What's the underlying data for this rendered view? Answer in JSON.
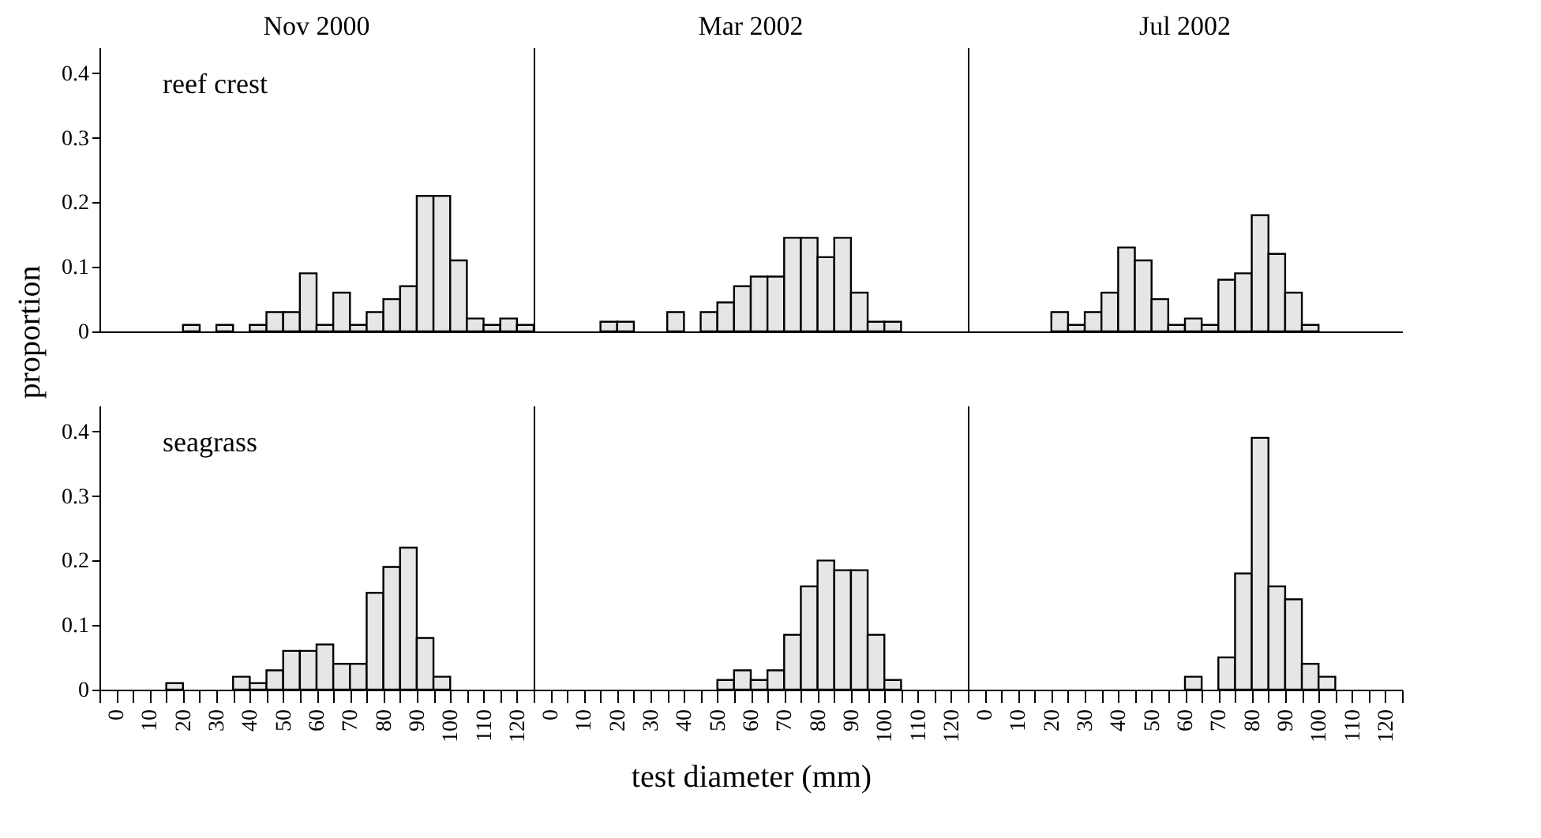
{
  "chart_data": [
    {
      "type": "histogram",
      "title": "Nov 2000",
      "ylabel": "proportion",
      "annotations": [
        "reef crest"
      ],
      "color": "#e6e6e6",
      "bins": [
        -5,
        0,
        5,
        10,
        15,
        20,
        25,
        30,
        35,
        40,
        45,
        50,
        55,
        60,
        65,
        70,
        75,
        80,
        85,
        90,
        95,
        100,
        105,
        110,
        115,
        120,
        125
      ],
      "values": [
        0,
        0,
        0,
        0,
        0,
        0.01,
        0,
        0.01,
        0,
        0.01,
        0.03,
        0.03,
        0.09,
        0.01,
        0.06,
        0.01,
        0.03,
        0.05,
        0.07,
        0.21,
        0.21,
        0.11,
        0.02,
        0.01,
        0.02,
        0.01
      ],
      "xlim": [
        -5,
        125
      ],
      "ylim": [
        0,
        0.44
      ],
      "yticks": [
        0,
        0.1,
        0.2,
        0.3,
        0.4
      ],
      "tick_labels": "y"
    },
    {
      "type": "histogram",
      "title": "Mar 2002",
      "color": "#e6e6e6",
      "bins": [
        -5,
        0,
        5,
        10,
        15,
        20,
        25,
        30,
        35,
        40,
        45,
        50,
        55,
        60,
        65,
        70,
        75,
        80,
        85,
        90,
        95,
        100,
        105,
        110,
        115,
        120,
        125
      ],
      "values": [
        0,
        0,
        0,
        0,
        0.015,
        0.015,
        0,
        0,
        0.03,
        0,
        0.03,
        0.045,
        0.07,
        0.085,
        0.085,
        0.145,
        0.145,
        0.115,
        0.145,
        0.06,
        0.015,
        0.015,
        0,
        0,
        0,
        0
      ],
      "xlim": [
        -5,
        125
      ],
      "ylim": [
        0,
        0.44
      ],
      "tick_labels": false
    },
    {
      "type": "histogram",
      "title": "Jul 2002",
      "color": "#e6e6e6",
      "bins": [
        -5,
        0,
        5,
        10,
        15,
        20,
        25,
        30,
        35,
        40,
        45,
        50,
        55,
        60,
        65,
        70,
        75,
        80,
        85,
        90,
        95,
        100,
        105,
        110,
        115,
        120,
        125
      ],
      "values": [
        0,
        0,
        0,
        0,
        0,
        0.03,
        0.01,
        0.03,
        0.06,
        0.13,
        0.11,
        0.05,
        0.01,
        0.02,
        0.01,
        0.08,
        0.09,
        0.18,
        0.12,
        0.06,
        0.01,
        0,
        0,
        0,
        0,
        0
      ],
      "xlim": [
        -5,
        125
      ],
      "ylim": [
        0,
        0.44
      ],
      "tick_labels": false
    },
    {
      "type": "histogram",
      "annotations": [
        "seagrass"
      ],
      "color": "#e6e6e6",
      "bins": [
        -5,
        0,
        5,
        10,
        15,
        20,
        25,
        30,
        35,
        40,
        45,
        50,
        55,
        60,
        65,
        70,
        75,
        80,
        85,
        90,
        95,
        100,
        105,
        110,
        115,
        120,
        125
      ],
      "values": [
        0,
        0,
        0,
        0,
        0.01,
        0,
        0,
        0,
        0.02,
        0.01,
        0.03,
        0.06,
        0.06,
        0.07,
        0.04,
        0.04,
        0.15,
        0.19,
        0.22,
        0.08,
        0.02,
        0,
        0,
        0,
        0,
        0
      ],
      "xlim": [
        -5,
        125
      ],
      "xticks": [
        {
          "value": -5,
          "label": null
        },
        0,
        {
          "value": 5,
          "label": null
        },
        10,
        {
          "value": 15,
          "label": null
        },
        20,
        {
          "value": 25,
          "label": null
        },
        30,
        {
          "value": 35,
          "label": null
        },
        40,
        {
          "value": 45,
          "label": null
        },
        50,
        {
          "value": 55,
          "label": null
        },
        60,
        {
          "value": 65,
          "label": null
        },
        70,
        {
          "value": 75,
          "label": null
        },
        80,
        {
          "value": 85,
          "label": null
        },
        90,
        {
          "value": 95,
          "label": null
        },
        100,
        {
          "value": 105,
          "label": null
        },
        110,
        {
          "value": 115,
          "label": null
        },
        120,
        {
          "value": 125,
          "label": null
        }
      ],
      "ylim": [
        0,
        0.44
      ],
      "yticks": [
        0,
        0.1,
        0.2,
        0.3,
        0.4
      ]
    },
    {
      "type": "histogram",
      "xlabel": "test diameter (mm)",
      "color": "#e6e6e6",
      "bins": [
        -5,
        0,
        5,
        10,
        15,
        20,
        25,
        30,
        35,
        40,
        45,
        50,
        55,
        60,
        65,
        70,
        75,
        80,
        85,
        90,
        95,
        100,
        105,
        110,
        115,
        120,
        125
      ],
      "values": [
        0,
        0,
        0,
        0,
        0,
        0,
        0,
        0,
        0,
        0,
        0,
        0.015,
        0.03,
        0.015,
        0.03,
        0.085,
        0.16,
        0.2,
        0.185,
        0.185,
        0.085,
        0.015,
        0,
        0,
        0,
        0
      ],
      "xlim": [
        -5,
        125
      ],
      "xticks": [
        {
          "value": -5,
          "label": null
        },
        0,
        {
          "value": 5,
          "label": null
        },
        10,
        {
          "value": 15,
          "label": null
        },
        20,
        {
          "value": 25,
          "label": null
        },
        30,
        {
          "value": 35,
          "label": null
        },
        40,
        {
          "value": 45,
          "label": null
        },
        50,
        {
          "value": 55,
          "label": null
        },
        60,
        {
          "value": 65,
          "label": null
        },
        70,
        {
          "value": 75,
          "label": null
        },
        80,
        {
          "value": 85,
          "label": null
        },
        90,
        {
          "value": 95,
          "label": null
        },
        100,
        {
          "value": 105,
          "label": null
        },
        110,
        {
          "value": 115,
          "label": null
        },
        120,
        {
          "value": 125,
          "label": null
        }
      ],
      "ylim": [
        0,
        0.44
      ],
      "tick_labels": "x"
    },
    {
      "type": "histogram",
      "color": "#e6e6e6",
      "bins": [
        -5,
        0,
        5,
        10,
        15,
        20,
        25,
        30,
        35,
        40,
        45,
        50,
        55,
        60,
        65,
        70,
        75,
        80,
        85,
        90,
        95,
        100,
        105,
        110,
        115,
        120,
        125
      ],
      "values": [
        0,
        0,
        0,
        0,
        0,
        0,
        0,
        0,
        0,
        0,
        0,
        0,
        0,
        0.02,
        0,
        0.05,
        0.18,
        0.39,
        0.16,
        0.14,
        0.04,
        0.02,
        0,
        0,
        0,
        0
      ],
      "xlim": [
        -5,
        125
      ],
      "xticks": [
        {
          "value": -5,
          "label": null
        },
        0,
        {
          "value": 5,
          "label": null
        },
        10,
        {
          "value": 15,
          "label": null
        },
        20,
        {
          "value": 25,
          "label": null
        },
        30,
        {
          "value": 35,
          "label": null
        },
        40,
        {
          "value": 45,
          "label": null
        },
        50,
        {
          "value": 55,
          "label": null
        },
        60,
        {
          "value": 65,
          "label": null
        },
        70,
        {
          "value": 75,
          "label": null
        },
        80,
        {
          "value": 85,
          "label": null
        },
        90,
        {
          "value": 95,
          "label": null
        },
        100,
        {
          "value": 105,
          "label": null
        },
        110,
        {
          "value": 115,
          "label": null
        },
        120,
        {
          "value": 125,
          "label": null
        }
      ],
      "ylim": [
        0,
        0.44
      ],
      "tick_labels": "x"
    }
  ]
}
